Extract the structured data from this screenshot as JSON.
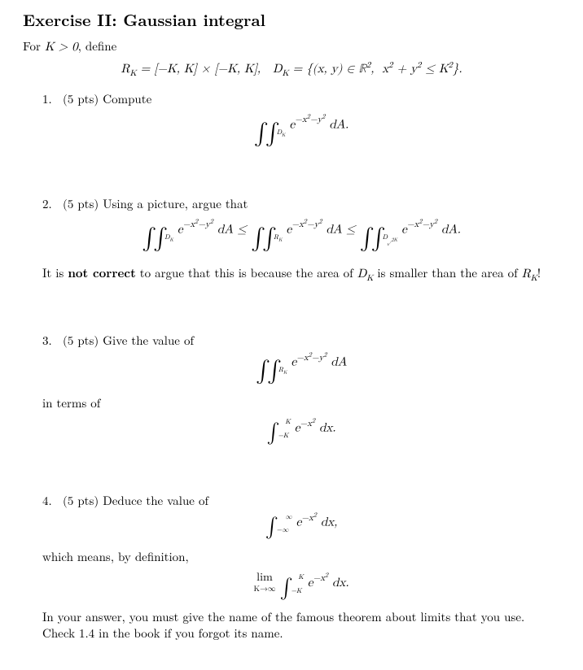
{
  "title": "Exercise II: Gaussian integral",
  "intro_pre": "For ",
  "intro_math": "K > 0",
  "intro_post": ", define",
  "def_line": "R<sub>K</sub> = [−K, K] × [−K, K],&nbsp;&nbsp;&nbsp;D<sub>K</sub> = {(x, y) ∈ ℝ<sup>2</sup>,&nbsp; x<sup>2</sup> + y<sup>2</sup> ≤ K<sup>2</sup>}.",
  "pts_label": "(5 pts)",
  "q1_text": "Compute",
  "q1_math": "<span class=\"dint\">∫∫</span><span class=\"subsc\">D<sub>K</sub></span>&nbsp;e<span class=\"expo\">−x<sup>2</sup>−y<sup>2</sup></span>&nbsp;dA.",
  "q2_text": "Using a picture, argue that",
  "q2_math": "<span class=\"dint\">∫∫</span><span class=\"subsc\">D<sub>K</sub></span> e<span class=\"expo\">−x<sup>2</sup>−y<sup>2</sup></span> dA ≤ <span class=\"dint\">∫∫</span><span class=\"subsc\">R<sub>K</sub></span> e<span class=\"expo\">−x<sup>2</sup>−y<sup>2</sup></span> dA ≤ <span class=\"dint\">∫∫</span><span class=\"subsc\">D<sub>√2K</sub></span> e<span class=\"expo\">−x<sup>2</sup>−y<sup>2</sup></span> dA.",
  "q2_note_a": "It is ",
  "q2_note_bold": "not correct",
  "q2_note_b": " to argue that this is because the area of ",
  "q2_note_m1": "D<sub>K</sub>",
  "q2_note_c": " is smaller than the area of ",
  "q2_note_m2": "R<sub>K</sub>",
  "q2_note_d": "!",
  "q3_text": "Give the value of",
  "q3_math1": "<span class=\"dint\">∫∫</span><span class=\"subsc\">R<sub>K</sub></span> e<span class=\"expo\">−x<sup>2</sup>−y<sup>2</sup></span> dA",
  "q3_mid": "in terms of",
  "q3_math2": "<span class=\"uint\">∫</span><span class=\"subsc\">−K</span><span class=\"supsc\">K</span>&nbsp;e<span class=\"expo\">−x<sup>2</sup></span>&nbsp;dx.",
  "q4_text": "Deduce the value of",
  "q4_math1": "<span class=\"uint\">∫</span><span class=\"subsc\">−∞</span><span class=\"supsc\">∞</span>&nbsp;e<span class=\"expo\">−x<sup>2</sup></span>&nbsp;dx,",
  "q4_mid": "which means, by definition,",
  "q4_math2": "<span class=\"rm\" style=\"display:inline-block;vertical-align:-0.4em;\"><span style=\"display:block;text-align:center;font-size:0.95em;\">lim</span><span style=\"display:block;font-size:0.65em;margin-top:-2px;\">K→∞</span></span>&nbsp;<span class=\"uint\">∫</span><span class=\"subsc\">−K</span><span class=\"supsc\">K</span>&nbsp;e<span class=\"expo\">−x<sup>2</sup></span>&nbsp;dx.",
  "q4_tail": "In your answer, you must give the name of the famous theorem about limits that you use. Check 1.4 in the book if you forgot its name."
}
